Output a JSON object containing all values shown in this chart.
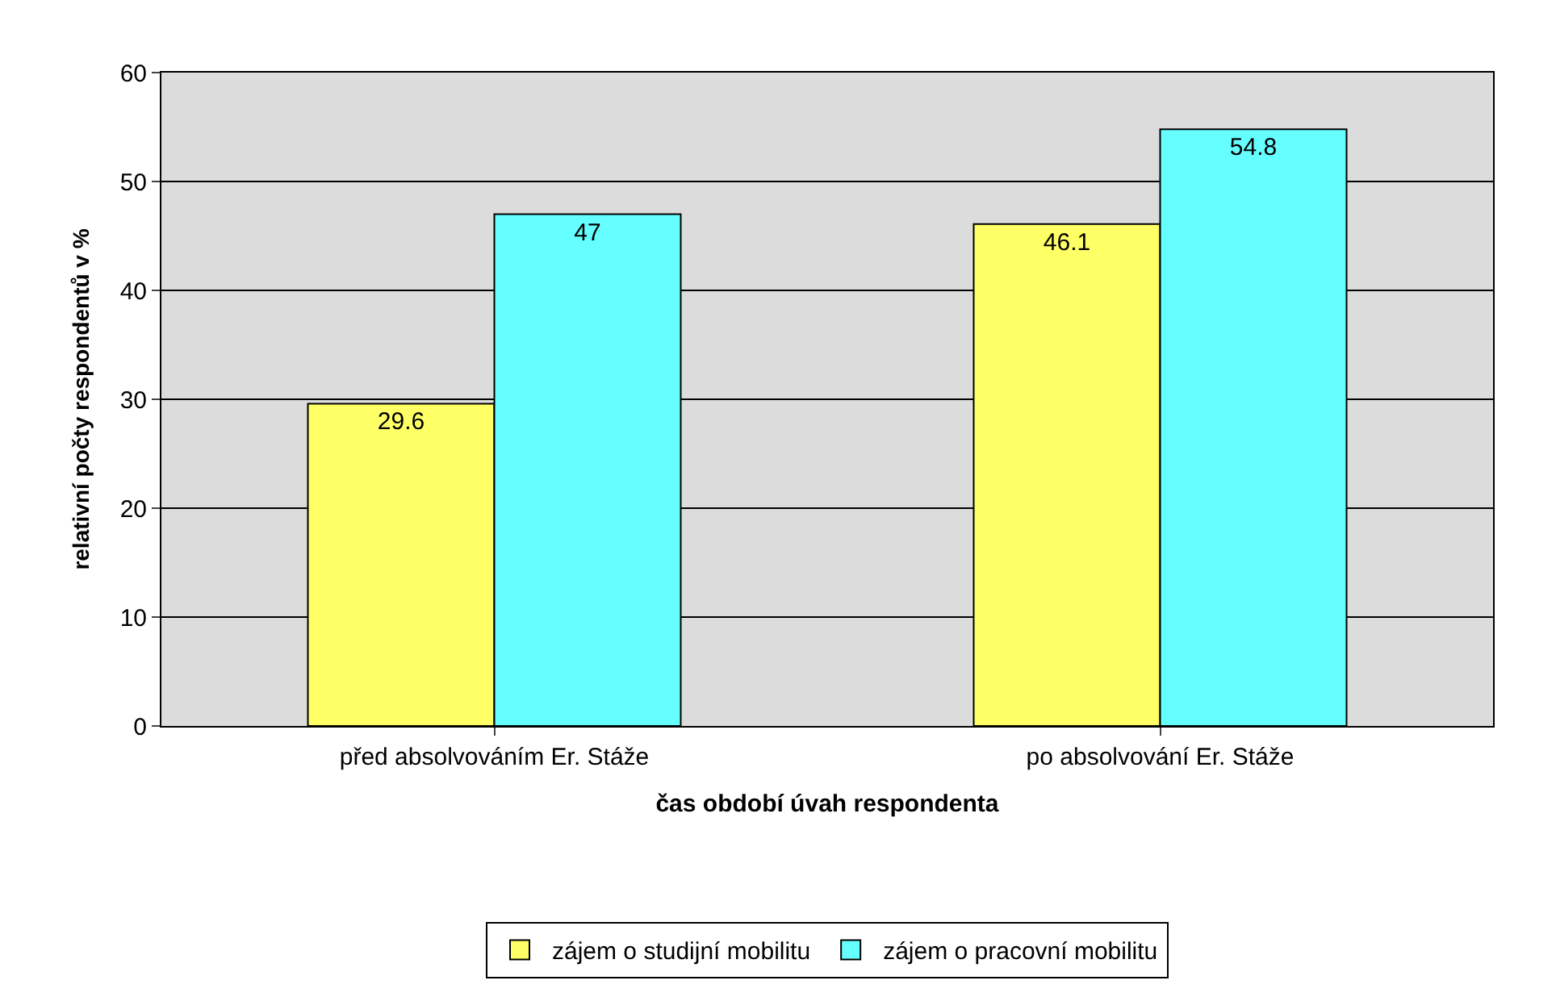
{
  "chart_data": {
    "type": "bar",
    "xlabel": "čas období úvah respondenta",
    "ylabel": "relativní počty respondentů v %",
    "categories": [
      "před absolvováním Er. Stáže",
      "po absolvování Er. Stáže"
    ],
    "series": [
      {
        "name": "zájem o studijní mobilitu",
        "color": "#ffff66",
        "values": [
          29.6,
          46.1
        ]
      },
      {
        "name": "zájem o pracovní mobilitu",
        "color": "#66ffff",
        "values": [
          47,
          54.8
        ]
      }
    ],
    "ylim": [
      0,
      60
    ],
    "yticks": [
      0,
      10,
      20,
      30,
      40,
      50,
      60
    ],
    "grid": "y",
    "legend": "bottom",
    "data_labels": true
  }
}
